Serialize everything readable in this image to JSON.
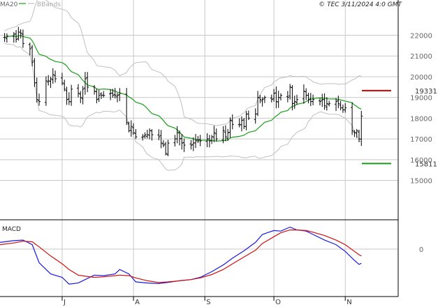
{
  "header": {
    "ma_label": "MA20",
    "bands_label": "BBands",
    "copyright": "© TEC 3/11/2024 4:0 GMT"
  },
  "colors": {
    "ma": "#1aa01a",
    "bands": "#c0c0c0",
    "bars": "#000000",
    "macd": "#1a1adc",
    "signal": "#d01010",
    "resistance": "#cc0000",
    "support": "#1a9a1a",
    "grid": "#c8c8c8"
  },
  "chart_data": [
    {
      "type": "ohlc",
      "panel": "price",
      "y_ticks": [
        15000,
        16000,
        17000,
        18000,
        19000,
        20000,
        21000,
        22000
      ],
      "y_tick_labels": [
        "15000",
        "16000",
        "17000",
        "18000",
        "19000",
        "20000",
        "21000",
        "22000"
      ],
      "ylim": [
        13100,
        23700
      ],
      "x_month_labels": [
        "J",
        "A",
        "S",
        "O",
        "N"
      ],
      "x_month_dates": [
        "2024-07-01",
        "2024-08-01",
        "2024-09-01",
        "2024-10-01",
        "2024-11-01"
      ],
      "xlim": [
        "2024-06-04",
        "2024-11-24"
      ],
      "series_ma_label": "MA20",
      "series_bands_label": "BBands",
      "close": [
        [
          "2024-06-06",
          21900
        ],
        [
          "2024-06-07",
          21950
        ],
        [
          "2024-06-10",
          22050
        ],
        [
          "2024-06-11",
          21800
        ],
        [
          "2024-06-12",
          22150
        ],
        [
          "2024-06-13",
          22100
        ],
        [
          "2024-06-14",
          21600
        ],
        [
          "2024-06-17",
          21350
        ],
        [
          "2024-06-18",
          20700
        ],
        [
          "2024-06-19",
          19700
        ],
        [
          "2024-06-20",
          18900
        ],
        [
          "2024-06-21",
          18800
        ],
        [
          "2024-06-24",
          19800
        ],
        [
          "2024-06-25",
          19800
        ],
        [
          "2024-06-26",
          19900
        ],
        [
          "2024-06-27",
          20100
        ],
        [
          "2024-06-28",
          19900
        ],
        [
          "2024-07-01",
          19700
        ],
        [
          "2024-07-02",
          19400
        ],
        [
          "2024-07-03",
          18900
        ],
        [
          "2024-07-04",
          18800
        ],
        [
          "2024-07-05",
          19400
        ],
        [
          "2024-07-08",
          19200
        ],
        [
          "2024-07-09",
          19000
        ],
        [
          "2024-07-10",
          19400
        ],
        [
          "2024-07-11",
          19900
        ],
        [
          "2024-07-12",
          19500
        ],
        [
          "2024-07-15",
          19300
        ],
        [
          "2024-07-16",
          18900
        ],
        [
          "2024-07-17",
          19100
        ],
        [
          "2024-07-18",
          19100
        ],
        [
          "2024-07-19",
          19100
        ],
        [
          "2024-07-22",
          19200
        ],
        [
          "2024-07-23",
          19100
        ],
        [
          "2024-07-24",
          19100
        ],
        [
          "2024-07-25",
          19100
        ],
        [
          "2024-07-26",
          19200
        ],
        [
          "2024-07-29",
          17800
        ],
        [
          "2024-07-30",
          17400
        ],
        [
          "2024-07-31",
          17600
        ],
        [
          "2024-08-01",
          17300
        ],
        [
          "2024-08-02",
          17100
        ],
        [
          "2024-08-05",
          17100
        ],
        [
          "2024-08-06",
          17200
        ],
        [
          "2024-08-07",
          17200
        ],
        [
          "2024-08-08",
          17400
        ],
        [
          "2024-08-09",
          17200
        ],
        [
          "2024-08-12",
          17100
        ],
        [
          "2024-08-13",
          16800
        ],
        [
          "2024-08-14",
          16700
        ],
        [
          "2024-08-15",
          16300
        ],
        [
          "2024-08-16",
          16800
        ],
        [
          "2024-08-19",
          17000
        ],
        [
          "2024-08-20",
          17300
        ],
        [
          "2024-08-21",
          17000
        ],
        [
          "2024-08-22",
          16800
        ],
        [
          "2024-08-23",
          16700
        ],
        [
          "2024-08-26",
          16700
        ],
        [
          "2024-08-27",
          16800
        ],
        [
          "2024-08-28",
          16900
        ],
        [
          "2024-08-29",
          16900
        ],
        [
          "2024-08-30",
          16900
        ],
        [
          "2024-09-02",
          17000
        ],
        [
          "2024-09-03",
          16900
        ],
        [
          "2024-09-04",
          17100
        ],
        [
          "2024-09-05",
          17300
        ],
        [
          "2024-09-06",
          17000
        ],
        [
          "2024-09-09",
          17400
        ],
        [
          "2024-09-10",
          17100
        ],
        [
          "2024-09-11",
          17300
        ],
        [
          "2024-09-12",
          17900
        ],
        [
          "2024-09-13",
          17700
        ],
        [
          "2024-09-16",
          17700
        ],
        [
          "2024-09-17",
          17900
        ],
        [
          "2024-09-18",
          17600
        ],
        [
          "2024-09-19",
          18200
        ],
        [
          "2024-09-20",
          18000
        ],
        [
          "2024-09-23",
          18200
        ],
        [
          "2024-09-24",
          19000
        ],
        [
          "2024-09-25",
          18900
        ],
        [
          "2024-09-26",
          18900
        ],
        [
          "2024-09-27",
          19000
        ],
        [
          "2024-09-30",
          18900
        ],
        [
          "2024-10-01",
          19200
        ],
        [
          "2024-10-02",
          18800
        ],
        [
          "2024-10-03",
          19000
        ],
        [
          "2024-10-04",
          19100
        ],
        [
          "2024-10-07",
          19000
        ],
        [
          "2024-10-08",
          19500
        ],
        [
          "2024-10-09",
          18700
        ],
        [
          "2024-10-10",
          18800
        ],
        [
          "2024-10-11",
          18900
        ],
        [
          "2024-10-14",
          19300
        ],
        [
          "2024-10-15",
          19100
        ],
        [
          "2024-10-16",
          18900
        ],
        [
          "2024-10-17",
          18800
        ],
        [
          "2024-10-18",
          18900
        ],
        [
          "2024-10-21",
          18800
        ],
        [
          "2024-10-22",
          18900
        ],
        [
          "2024-10-23",
          18600
        ],
        [
          "2024-10-24",
          18700
        ],
        [
          "2024-10-25",
          18700
        ],
        [
          "2024-10-28",
          18800
        ],
        [
          "2024-10-29",
          18700
        ],
        [
          "2024-10-30",
          18500
        ],
        [
          "2024-10-31",
          18400
        ],
        [
          "2024-11-01",
          18500
        ],
        [
          "2024-11-04",
          17400
        ],
        [
          "2024-11-05",
          17300
        ],
        [
          "2024-11-06",
          17400
        ],
        [
          "2024-11-07",
          17000
        ],
        [
          "2024-11-08",
          18100
        ]
      ],
      "annotations": [
        {
          "label": "19331",
          "value": 19331,
          "role": "resistance"
        },
        {
          "label": "15811",
          "value": 15811,
          "role": "support"
        }
      ]
    },
    {
      "type": "line",
      "panel": "macd",
      "title": "MACD",
      "y_ticks": [
        0
      ],
      "y_tick_labels": [
        "0"
      ],
      "ylim": [
        -420,
        260
      ],
      "xlim": [
        "2024-06-04",
        "2024-11-24"
      ],
      "series": [
        {
          "role": "macd",
          "color": "#1a1adc",
          "points": [
            [
              "2024-06-04",
              60
            ],
            [
              "2024-06-10",
              75
            ],
            [
              "2024-06-14",
              80
            ],
            [
              "2024-06-18",
              40
            ],
            [
              "2024-06-21",
              -120
            ],
            [
              "2024-06-26",
              -220
            ],
            [
              "2024-07-01",
              -250
            ],
            [
              "2024-07-04",
              -310
            ],
            [
              "2024-07-08",
              -300
            ],
            [
              "2024-07-11",
              -270
            ],
            [
              "2024-07-15",
              -230
            ],
            [
              "2024-07-19",
              -235
            ],
            [
              "2024-07-24",
              -220
            ],
            [
              "2024-07-26",
              -180
            ],
            [
              "2024-07-30",
              -220
            ],
            [
              "2024-08-02",
              -290
            ],
            [
              "2024-08-07",
              -300
            ],
            [
              "2024-08-12",
              -305
            ],
            [
              "2024-08-16",
              -295
            ],
            [
              "2024-08-21",
              -280
            ],
            [
              "2024-08-26",
              -270
            ],
            [
              "2024-08-30",
              -250
            ],
            [
              "2024-09-04",
              -200
            ],
            [
              "2024-09-09",
              -140
            ],
            [
              "2024-09-13",
              -80
            ],
            [
              "2024-09-18",
              -15
            ],
            [
              "2024-09-23",
              60
            ],
            [
              "2024-09-26",
              130
            ],
            [
              "2024-10-01",
              165
            ],
            [
              "2024-10-04",
              160
            ],
            [
              "2024-10-08",
              195
            ],
            [
              "2024-10-11",
              170
            ],
            [
              "2024-10-15",
              160
            ],
            [
              "2024-10-18",
              130
            ],
            [
              "2024-10-23",
              80
            ],
            [
              "2024-10-28",
              40
            ],
            [
              "2024-11-01",
              -20
            ],
            [
              "2024-11-05",
              -100
            ],
            [
              "2024-11-07",
              -135
            ],
            [
              "2024-11-08",
              -125
            ]
          ]
        },
        {
          "role": "signal",
          "color": "#d01010",
          "points": [
            [
              "2024-06-04",
              40
            ],
            [
              "2024-06-10",
              55
            ],
            [
              "2024-06-14",
              70
            ],
            [
              "2024-06-18",
              65
            ],
            [
              "2024-06-21",
              20
            ],
            [
              "2024-06-26",
              -60
            ],
            [
              "2024-07-01",
              -130
            ],
            [
              "2024-07-04",
              -180
            ],
            [
              "2024-07-08",
              -230
            ],
            [
              "2024-07-11",
              -240
            ],
            [
              "2024-07-15",
              -250
            ],
            [
              "2024-07-19",
              -245
            ],
            [
              "2024-07-24",
              -235
            ],
            [
              "2024-07-26",
              -230
            ],
            [
              "2024-07-30",
              -235
            ],
            [
              "2024-08-02",
              -255
            ],
            [
              "2024-08-07",
              -280
            ],
            [
              "2024-08-12",
              -295
            ],
            [
              "2024-08-16",
              -290
            ],
            [
              "2024-08-21",
              -280
            ],
            [
              "2024-08-26",
              -270
            ],
            [
              "2024-08-30",
              -255
            ],
            [
              "2024-09-04",
              -225
            ],
            [
              "2024-09-09",
              -180
            ],
            [
              "2024-09-13",
              -130
            ],
            [
              "2024-09-18",
              -70
            ],
            [
              "2024-09-23",
              -10
            ],
            [
              "2024-09-26",
              50
            ],
            [
              "2024-10-01",
              110
            ],
            [
              "2024-10-04",
              145
            ],
            [
              "2024-10-08",
              170
            ],
            [
              "2024-10-11",
              170
            ],
            [
              "2024-10-15",
              165
            ],
            [
              "2024-10-18",
              150
            ],
            [
              "2024-10-23",
              120
            ],
            [
              "2024-10-28",
              80
            ],
            [
              "2024-11-01",
              40
            ],
            [
              "2024-11-05",
              -20
            ],
            [
              "2024-11-07",
              -50
            ],
            [
              "2024-11-08",
              -60
            ]
          ]
        }
      ]
    }
  ]
}
